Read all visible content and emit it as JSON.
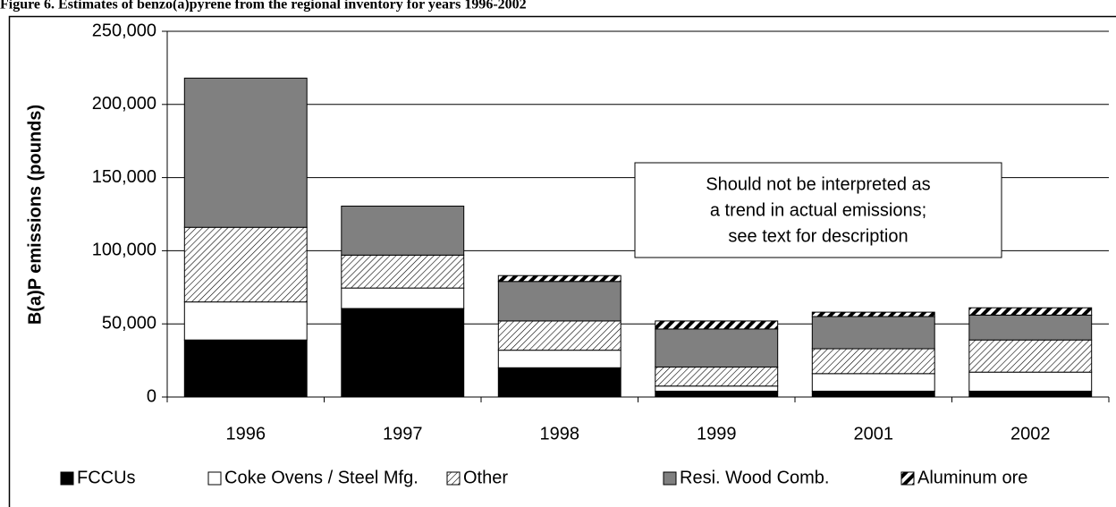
{
  "chart_data": {
    "type": "bar",
    "stacked": true,
    "title": "Figure 6. Estimates of benzo(a)pyrene from the regional inventory for years 1996-2002",
    "y_label": "B(a)P emissions (pounds)",
    "annotation": [
      "Should not be interpreted as",
      "a trend in actual emissions;",
      "see text for description"
    ],
    "categories": [
      "1996",
      "1997",
      "1998",
      "1999",
      "2001",
      "2002"
    ],
    "series": [
      {
        "name": "FCCUs",
        "color": "#000000",
        "pattern": "solid",
        "values": [
          39000,
          60500,
          20000,
          4000,
          4000,
          4000
        ]
      },
      {
        "name": "Coke Ovens / Steel Mfg.",
        "color": "#ffffff",
        "pattern": "solid",
        "values": [
          26000,
          14000,
          12000,
          3500,
          12000,
          13000
        ]
      },
      {
        "name": "Other",
        "color": "#ffffff",
        "pattern": "hatch",
        "values": [
          51000,
          22500,
          20000,
          13000,
          17000,
          22000
        ]
      },
      {
        "name": "Resi. Wood Comb.",
        "color": "#808080",
        "pattern": "solid",
        "values": [
          102000,
          33500,
          27000,
          26000,
          22000,
          17000
        ]
      },
      {
        "name": "Aluminum ore",
        "color": "#000000",
        "pattern": "stripe",
        "values": [
          0,
          0,
          4000,
          5500,
          3000,
          5000
        ]
      }
    ],
    "ylim": [
      0,
      250000
    ],
    "yticks": [
      0,
      {
        "value": 50000,
        "label": "50,000"
      },
      {
        "value": 100000,
        "label": "100,000"
      },
      {
        "value": 150000,
        "label": "150,000"
      },
      {
        "value": 200000,
        "label": "200,000"
      },
      {
        "value": 250000,
        "label": "250,000"
      }
    ],
    "grid": true,
    "legend": "bottom"
  }
}
